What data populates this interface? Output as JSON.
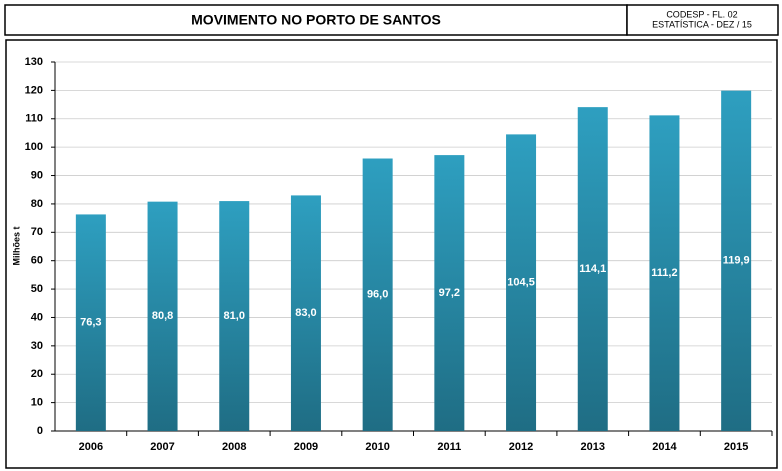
{
  "header": {
    "title": "MOVIMENTO NO PORTO DE SANTOS",
    "code": "CODESP - FL. 02",
    "issue": "ESTATÍSTICA - DEZ  /  15"
  },
  "chart_data": {
    "type": "bar",
    "y_label": "Milhões  t",
    "categories": [
      "2006",
      "2007",
      "2008",
      "2009",
      "2010",
      "2011",
      "2012",
      "2013",
      "2014",
      "2015"
    ],
    "values": [
      76.3,
      80.8,
      81.0,
      83.0,
      96.0,
      97.2,
      104.5,
      114.1,
      111.2,
      119.9
    ],
    "value_labels": [
      "76,3",
      "80,8",
      "81,0",
      "83,0",
      "96,0",
      "97,2",
      "104,5",
      "114,1",
      "111,2",
      "119,9"
    ],
    "color": "#2e9fc0",
    "ylim": [
      0,
      130
    ],
    "yticks": [
      0,
      10,
      20,
      30,
      40,
      50,
      60,
      70,
      80,
      90,
      100,
      110,
      120,
      130
    ],
    "grid": true
  }
}
